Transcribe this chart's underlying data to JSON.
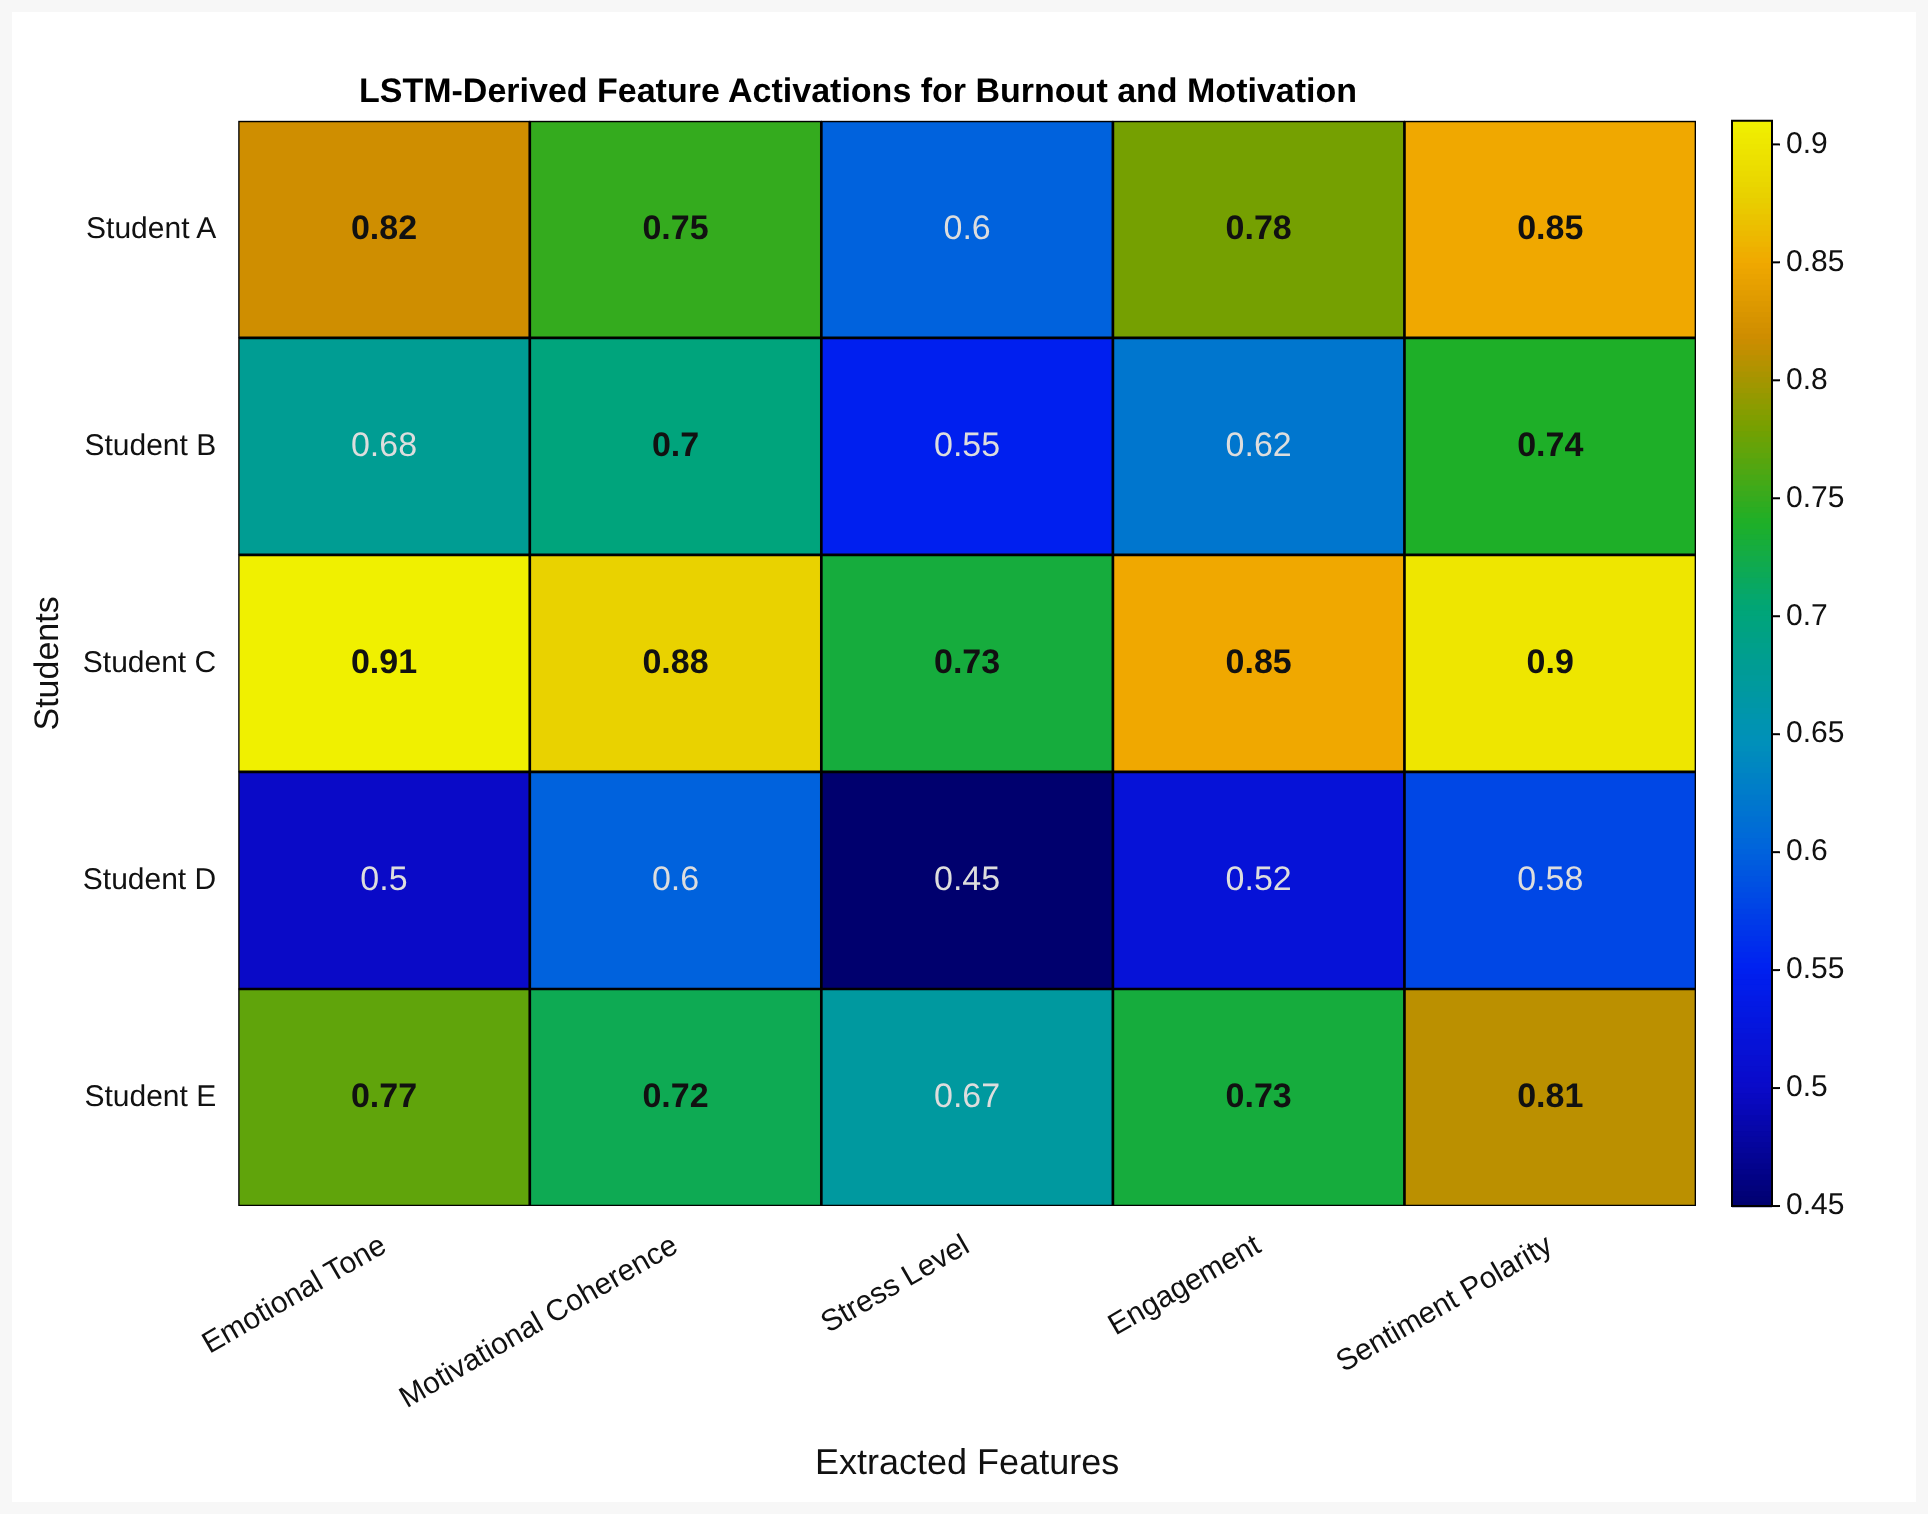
{
  "chart_data": {
    "type": "heatmap",
    "title": "LSTM-Derived Feature Activations for Burnout and Motivation",
    "xlabel": "Extracted Features",
    "ylabel": "Students",
    "categories": [
      "Emotional Tone",
      "Motivational Coherence",
      "Stress Level",
      "Engagement",
      "Sentiment Polarity"
    ],
    "y_categories": [
      "Student A",
      "Student B",
      "Student C",
      "Student D",
      "Student E"
    ],
    "cells": [
      [
        0.82,
        0.75,
        0.6,
        0.78,
        0.85
      ],
      [
        0.68,
        0.7,
        0.55,
        0.62,
        0.74
      ],
      [
        0.91,
        0.88,
        0.73,
        0.85,
        0.9
      ],
      [
        0.5,
        0.6,
        0.45,
        0.52,
        0.58
      ],
      [
        0.77,
        0.72,
        0.67,
        0.73,
        0.81
      ]
    ],
    "data_labels": true,
    "clim": [
      0.45,
      0.91
    ],
    "cticks": [
      0.45,
      0.5,
      0.55,
      0.6,
      0.65,
      0.7,
      0.75,
      0.8,
      0.85,
      0.9
    ]
  }
}
